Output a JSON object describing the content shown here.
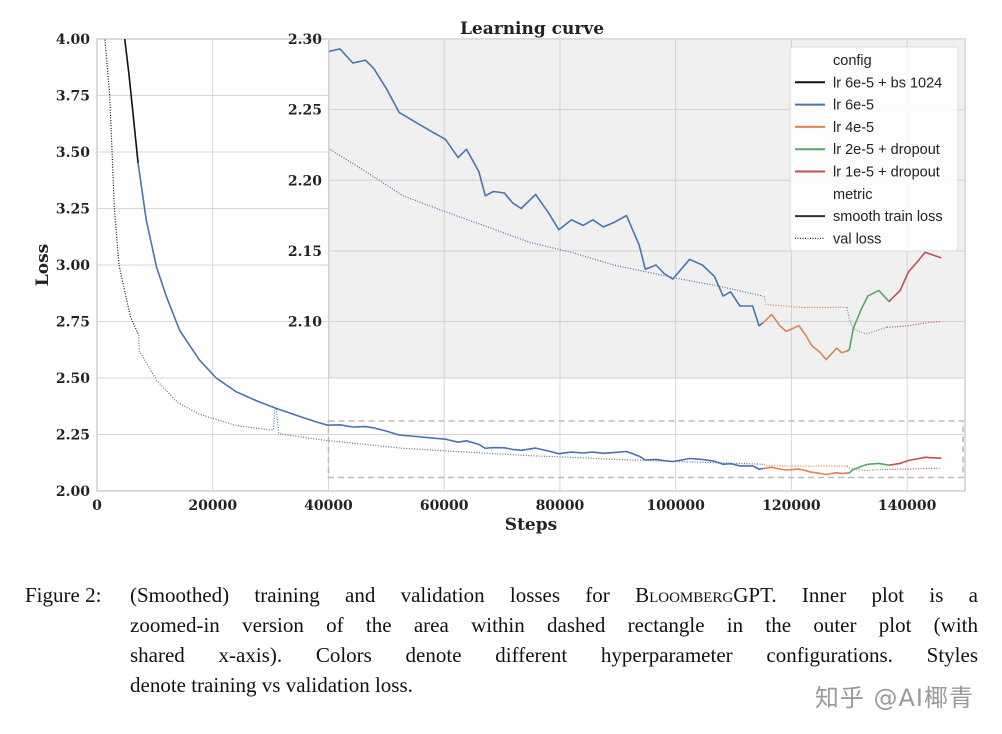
{
  "chart_data": {
    "type": "line",
    "title": "Learning curve",
    "xlabel": "Steps",
    "ylabel": "Loss",
    "outer": {
      "xlim": [
        0,
        150000
      ],
      "ylim": [
        2.0,
        4.0
      ],
      "xticks": [
        "0",
        "20000",
        "40000",
        "60000",
        "80000",
        "100000",
        "120000",
        "140000"
      ],
      "xtick_values": [
        0,
        20000,
        40000,
        60000,
        80000,
        100000,
        120000,
        140000
      ],
      "yticks": [
        "2.00",
        "2.25",
        "2.50",
        "2.75",
        "3.00",
        "3.25",
        "3.50",
        "3.75",
        "4.00"
      ],
      "ytick_values": [
        2.0,
        2.25,
        2.5,
        2.75,
        3.0,
        3.25,
        3.5,
        3.75,
        4.0
      ],
      "grid": true,
      "zoom_rectangle": {
        "x": [
          40000,
          150000
        ],
        "y": [
          2.06,
          2.31
        ],
        "style": "dashed"
      }
    },
    "inner": {
      "xlim": [
        40000,
        150000
      ],
      "ylim": [
        2.06,
        2.3
      ],
      "yticks": [
        "2.10",
        "2.15",
        "2.20",
        "2.25",
        "2.30"
      ],
      "ytick_values": [
        2.1,
        2.15,
        2.2,
        2.25,
        2.3
      ],
      "xtick_values": [
        40000,
        60000,
        80000,
        100000,
        120000,
        140000
      ],
      "grid": true,
      "background": "#f0f0f0"
    },
    "legend": {
      "placement": "top-right",
      "config_title": "config",
      "metric_title": "metric",
      "configs": [
        {
          "label": "lr 6e-5 + bs 1024",
          "color": "#111111"
        },
        {
          "label": "lr 6e-5",
          "color": "#4c72b0"
        },
        {
          "label": "lr 4e-5",
          "color": "#dd8452"
        },
        {
          "label": "lr 2e-5 + dropout",
          "color": "#55a868"
        },
        {
          "label": "lr 1e-5 + dropout",
          "color": "#c44e52"
        }
      ],
      "metrics": [
        {
          "label": "smooth train loss",
          "style": "solid"
        },
        {
          "label": "val loss",
          "style": "dotted"
        }
      ]
    },
    "series": [
      {
        "config": "lr 6e-5 + bs 1024",
        "metric": "smooth train loss",
        "color": "#111111",
        "points": [
          [
            4700,
            4.02
          ],
          [
            5500,
            3.85
          ],
          [
            6300,
            3.65
          ],
          [
            7100,
            3.45
          ]
        ]
      },
      {
        "config": "lr 6e-5 + bs 1024",
        "metric": "val loss",
        "color": "#111111",
        "points": [
          [
            1300,
            4.02
          ],
          [
            2200,
            3.75
          ],
          [
            3000,
            3.25
          ],
          [
            3800,
            3.0
          ],
          [
            5000,
            2.86
          ],
          [
            5800,
            2.77
          ],
          [
            7200,
            2.69
          ]
        ]
      },
      {
        "config": "lr 6e-5",
        "metric": "smooth train loss",
        "color": "#4c72b0",
        "points": [
          [
            7100,
            3.45
          ],
          [
            8500,
            3.2
          ],
          [
            10300,
            2.99
          ],
          [
            12000,
            2.86
          ],
          [
            14300,
            2.71
          ],
          [
            17700,
            2.58
          ],
          [
            20600,
            2.5
          ],
          [
            24000,
            2.44
          ],
          [
            27500,
            2.4
          ],
          [
            31000,
            2.365
          ],
          [
            35000,
            2.33
          ],
          [
            38000,
            2.305
          ],
          [
            39850,
            2.291
          ],
          [
            42000,
            2.293
          ],
          [
            44200,
            2.283
          ],
          [
            46400,
            2.285
          ],
          [
            47850,
            2.279
          ],
          [
            50000,
            2.265
          ],
          [
            52200,
            2.248
          ],
          [
            55100,
            2.241
          ],
          [
            58000,
            2.234
          ],
          [
            60200,
            2.229
          ],
          [
            62400,
            2.216
          ],
          [
            63850,
            2.222
          ],
          [
            66000,
            2.206
          ],
          [
            67100,
            2.189
          ],
          [
            68500,
            2.192
          ],
          [
            70400,
            2.191
          ],
          [
            71800,
            2.184
          ],
          [
            73300,
            2.18
          ],
          [
            75800,
            2.19
          ],
          [
            78000,
            2.177
          ],
          [
            79800,
            2.165
          ],
          [
            82000,
            2.172
          ],
          [
            84000,
            2.168
          ],
          [
            85700,
            2.172
          ],
          [
            87500,
            2.167
          ],
          [
            89300,
            2.17
          ],
          [
            91500,
            2.175
          ],
          [
            93700,
            2.154
          ],
          [
            94750,
            2.137
          ],
          [
            96600,
            2.14
          ],
          [
            98000,
            2.134
          ],
          [
            99500,
            2.13
          ],
          [
            102400,
            2.144
          ],
          [
            104600,
            2.14
          ],
          [
            106700,
            2.132
          ],
          [
            108200,
            2.118
          ],
          [
            109500,
            2.121
          ],
          [
            111100,
            2.111
          ],
          [
            113300,
            2.111
          ],
          [
            114400,
            2.097
          ],
          [
            115100,
            2.099
          ]
        ]
      },
      {
        "config": "lr 6e-5",
        "metric": "val loss",
        "color": "#4c72b0",
        "points": [
          [
            7200,
            2.69
          ],
          [
            7300,
            2.62
          ],
          [
            10300,
            2.49
          ],
          [
            14000,
            2.39
          ],
          [
            17700,
            2.34
          ],
          [
            24000,
            2.29
          ],
          [
            29900,
            2.27
          ],
          [
            30500,
            2.27
          ],
          [
            30700,
            2.36
          ],
          [
            31000,
            2.36
          ],
          [
            31400,
            2.254
          ],
          [
            35000,
            2.24
          ],
          [
            39850,
            2.223
          ],
          [
            45700,
            2.208
          ],
          [
            52900,
            2.189
          ],
          [
            60000,
            2.178
          ],
          [
            67500,
            2.167
          ],
          [
            74800,
            2.156
          ],
          [
            82000,
            2.149
          ],
          [
            89300,
            2.14
          ],
          [
            95100,
            2.135
          ],
          [
            100900,
            2.13
          ],
          [
            107500,
            2.125
          ],
          [
            115100,
            2.118
          ]
        ]
      },
      {
        "config": "lr 4e-5",
        "metric": "smooth train loss",
        "color": "#dd8452",
        "points": [
          [
            115100,
            2.099
          ],
          [
            116600,
            2.105
          ],
          [
            118000,
            2.097
          ],
          [
            119100,
            2.093
          ],
          [
            121300,
            2.097
          ],
          [
            122500,
            2.09
          ],
          [
            123500,
            2.083
          ],
          [
            125000,
            2.078
          ],
          [
            126000,
            2.073
          ],
          [
            127800,
            2.081
          ],
          [
            128700,
            2.078
          ],
          [
            129600,
            2.079
          ]
        ]
      },
      {
        "config": "lr 4e-5",
        "metric": "val loss",
        "color": "#dd8452",
        "points": [
          [
            115300,
            2.118
          ],
          [
            115600,
            2.112
          ],
          [
            122000,
            2.11
          ],
          [
            129600,
            2.11
          ]
        ]
      },
      {
        "config": "lr 2e-5 + dropout",
        "metric": "smooth train loss",
        "color": "#55a868",
        "points": [
          [
            129600,
            2.079
          ],
          [
            130000,
            2.08
          ],
          [
            130700,
            2.095
          ],
          [
            132000,
            2.108
          ],
          [
            133200,
            2.118
          ],
          [
            135100,
            2.122
          ],
          [
            136900,
            2.114
          ]
        ]
      },
      {
        "config": "lr 2e-5 + dropout",
        "metric": "val loss",
        "color": "#55a868",
        "points": [
          [
            129600,
            2.11
          ],
          [
            130000,
            2.102
          ],
          [
            130700,
            2.095
          ],
          [
            132900,
            2.091
          ],
          [
            136500,
            2.096
          ]
        ]
      },
      {
        "config": "lr 1e-5 + dropout",
        "metric": "smooth train loss",
        "color": "#c44e52",
        "points": [
          [
            136900,
            2.114
          ],
          [
            137300,
            2.116
          ],
          [
            138800,
            2.122
          ],
          [
            140200,
            2.135
          ],
          [
            141700,
            2.142
          ],
          [
            143100,
            2.149
          ],
          [
            144500,
            2.147
          ],
          [
            145900,
            2.145
          ]
        ]
      },
      {
        "config": "lr 1e-5 + dropout",
        "metric": "val loss",
        "color": "#c44e52",
        "points": [
          [
            136500,
            2.096
          ],
          [
            137300,
            2.096
          ],
          [
            140200,
            2.097
          ],
          [
            143000,
            2.099
          ],
          [
            145600,
            2.1
          ]
        ]
      }
    ]
  },
  "caption": {
    "label": "Figure 2:",
    "line1_a": "(Smoothed) training and validation losses for ",
    "line1_b": "Bloomberg",
    "line1_c": "GPT. Inner plot is a",
    "line2": "zoomed-in version of the area within dashed rectangle in the outer plot (with",
    "line3": "shared x-axis). Colors denote different hyperparameter configurations. Styles",
    "line4": "denote training vs validation loss."
  },
  "watermark": "知乎 @AI椰青"
}
